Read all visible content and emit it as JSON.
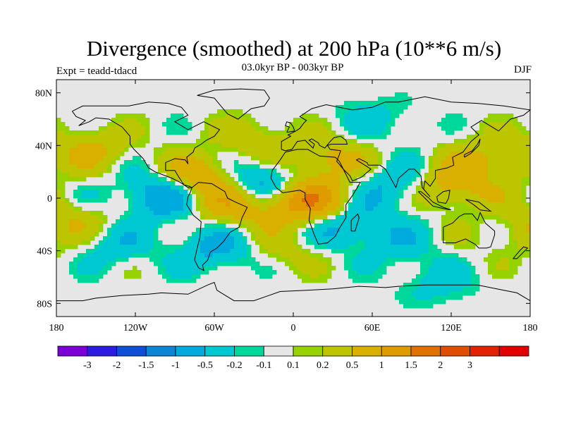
{
  "title": "Divergence (smoothed) at 200 hPa (10**6 m/s)",
  "subtitle": "03.0kyr BP - 003kyr BP",
  "experiment": "Expt = teadd-tdacd",
  "season": "DJF",
  "map": {
    "lat_range": [
      -90,
      90
    ],
    "lon_range": [
      -180,
      180
    ],
    "lat_ticks": [
      "80N",
      "40N",
      "0",
      "40S",
      "80S"
    ],
    "lon_ticks": [
      "180",
      "120W",
      "60W",
      "0",
      "60E",
      "120E",
      "180"
    ],
    "background_color": "#e6e6e6"
  },
  "colorbar": {
    "colors": [
      "#7b00d8",
      "#2b1de0",
      "#0f4fd6",
      "#0a86d4",
      "#00aadd",
      "#00c8d2",
      "#00d79a",
      "#e6e6e6",
      "#96d200",
      "#bcc500",
      "#d9b000",
      "#df9b00",
      "#e07000",
      "#de4d00",
      "#e12200",
      "#e30000"
    ],
    "labels": [
      "-3",
      "-2",
      "-1.5",
      "-1",
      "-0.5",
      "-0.2",
      "-0.1",
      "0.1",
      "0.2",
      "0.5",
      "1",
      "1.5",
      "2",
      "3"
    ]
  },
  "chart_data": {
    "type": "filled-contour-map",
    "variable": "Divergence (smoothed) at 200 hPa",
    "units": "10**6 m/s",
    "levels": [
      -3,
      -2,
      -1.5,
      -1,
      -0.5,
      -0.2,
      -0.1,
      0.1,
      0.2,
      0.5,
      1,
      1.5,
      2,
      3
    ],
    "anomaly_centers": [
      {
        "lon": 10,
        "lat": -2,
        "value": 1.5
      },
      {
        "lon": -25,
        "lat": 12,
        "value": -1.0
      },
      {
        "lon": -70,
        "lat": 15,
        "value": 1.0
      },
      {
        "lon": -100,
        "lat": 2,
        "value": -1.0
      },
      {
        "lon": -150,
        "lat": 38,
        "value": 0.5
      },
      {
        "lon": 115,
        "lat": 8,
        "value": 1.0
      },
      {
        "lon": 85,
        "lat": 8,
        "value": -0.8
      },
      {
        "lon": -45,
        "lat": -5,
        "value": 0.8
      },
      {
        "lon": -60,
        "lat": -38,
        "value": -0.6
      },
      {
        "lon": 40,
        "lat": -20,
        "value": -0.7
      },
      {
        "lon": 25,
        "lat": 30,
        "value": 0.7
      },
      {
        "lon": 150,
        "lat": 30,
        "value": 0.6
      },
      {
        "lon": 60,
        "lat": 60,
        "value": -0.3
      },
      {
        "lon": 170,
        "lat": -30,
        "value": 0.3
      },
      {
        "lon": -165,
        "lat": -15,
        "value": 0.4
      },
      {
        "lon": -140,
        "lat": -35,
        "value": -0.4
      },
      {
        "lon": 80,
        "lat": -35,
        "value": -0.3
      },
      {
        "lon": -30,
        "lat": 45,
        "value": 0.4
      },
      {
        "lon": -5,
        "lat": -40,
        "value": 0.3
      },
      {
        "lon": 110,
        "lat": -65,
        "value": -0.3
      }
    ]
  }
}
